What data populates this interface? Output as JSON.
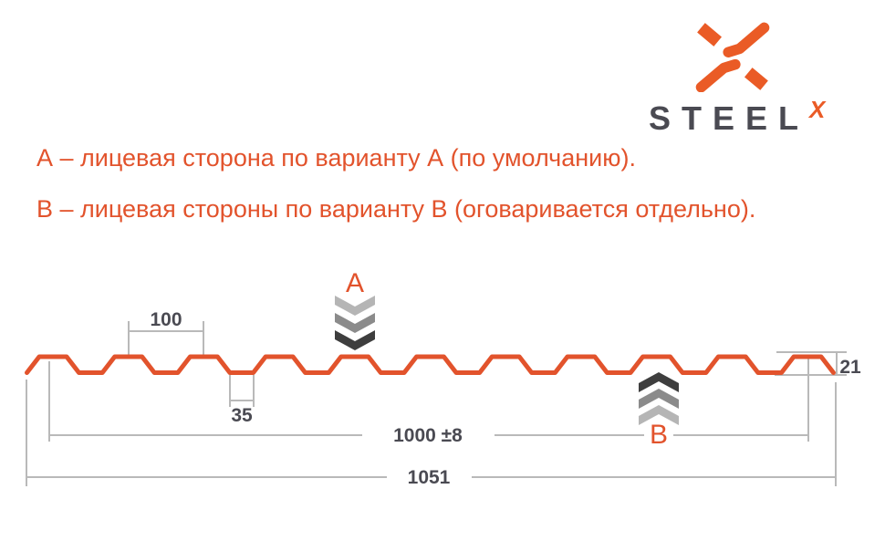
{
  "logo": {
    "brand": "STEEL",
    "superscript_x": "X"
  },
  "notes": {
    "variant_a": "А – лицевая сторона по варианту А (по умолчанию).",
    "variant_b": "В – лицевая стороны по варианту В (оговаривается отдельно)."
  },
  "diagram": {
    "dimensions": {
      "rib_pitch": "100",
      "valley_width": "35",
      "profile_height": "21",
      "covering_width": "1000 ±8",
      "overall_width": "1051"
    },
    "face_labels": {
      "top": "A",
      "bottom": "B"
    },
    "profile": {
      "ribs": 11
    }
  },
  "colors": {
    "accent_orange": "#E2532C",
    "logo_orange": "#EA5B26",
    "ink_dark": "#4A4A52",
    "dim_line_gray": "#B9B9B9",
    "chevron_light": "#B5B5B5",
    "chevron_mid": "#8B8B8B",
    "chevron_dark": "#3E3E3E"
  }
}
